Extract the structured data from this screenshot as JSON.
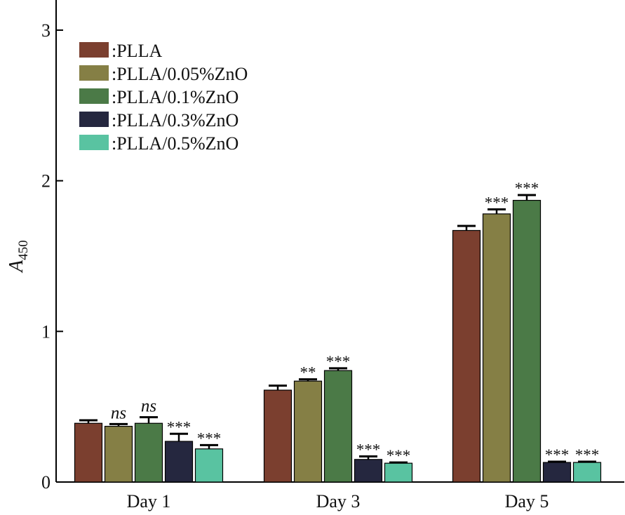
{
  "chart_data": {
    "type": "bar",
    "categories": [
      "Day 1",
      "Day 3",
      "Day 5"
    ],
    "ylabel_main": "A",
    "ylabel_sub": "450",
    "xlabel": "",
    "ylim": [
      0,
      3.2
    ],
    "yticks": [
      0,
      1,
      2,
      3
    ],
    "grid": false,
    "legend_position": "top-left",
    "series": [
      {
        "name": ":PLLA",
        "color": "#7b3f2f",
        "values": [
          0.39,
          0.61,
          1.67
        ],
        "errors": [
          0.02,
          0.03,
          0.03
        ],
        "labels": [
          "",
          "",
          ""
        ]
      },
      {
        "name": ":PLLA/0.05%ZnO",
        "color": "#857f45",
        "values": [
          0.37,
          0.67,
          1.78
        ],
        "errors": [
          0.015,
          0.012,
          0.03
        ],
        "labels": [
          "ns",
          "**",
          "***"
        ]
      },
      {
        "name": ":PLLA/0.1%ZnO",
        "color": "#4b7a47",
        "values": [
          0.39,
          0.74,
          1.87
        ],
        "errors": [
          0.04,
          0.015,
          0.035
        ],
        "labels": [
          "ns",
          "***",
          "***"
        ]
      },
      {
        "name": ":PLLA/0.3%ZnO",
        "color": "#25273f",
        "values": [
          0.27,
          0.15,
          0.13
        ],
        "errors": [
          0.05,
          0.02,
          0.005
        ],
        "labels": [
          "***",
          "***",
          "***"
        ]
      },
      {
        "name": ":PLLA/0.5%ZnO",
        "color": "#59c3a1",
        "values": [
          0.22,
          0.125,
          0.13
        ],
        "errors": [
          0.025,
          0.005,
          0.005
        ],
        "labels": [
          "***",
          "***",
          "***"
        ]
      }
    ]
  }
}
